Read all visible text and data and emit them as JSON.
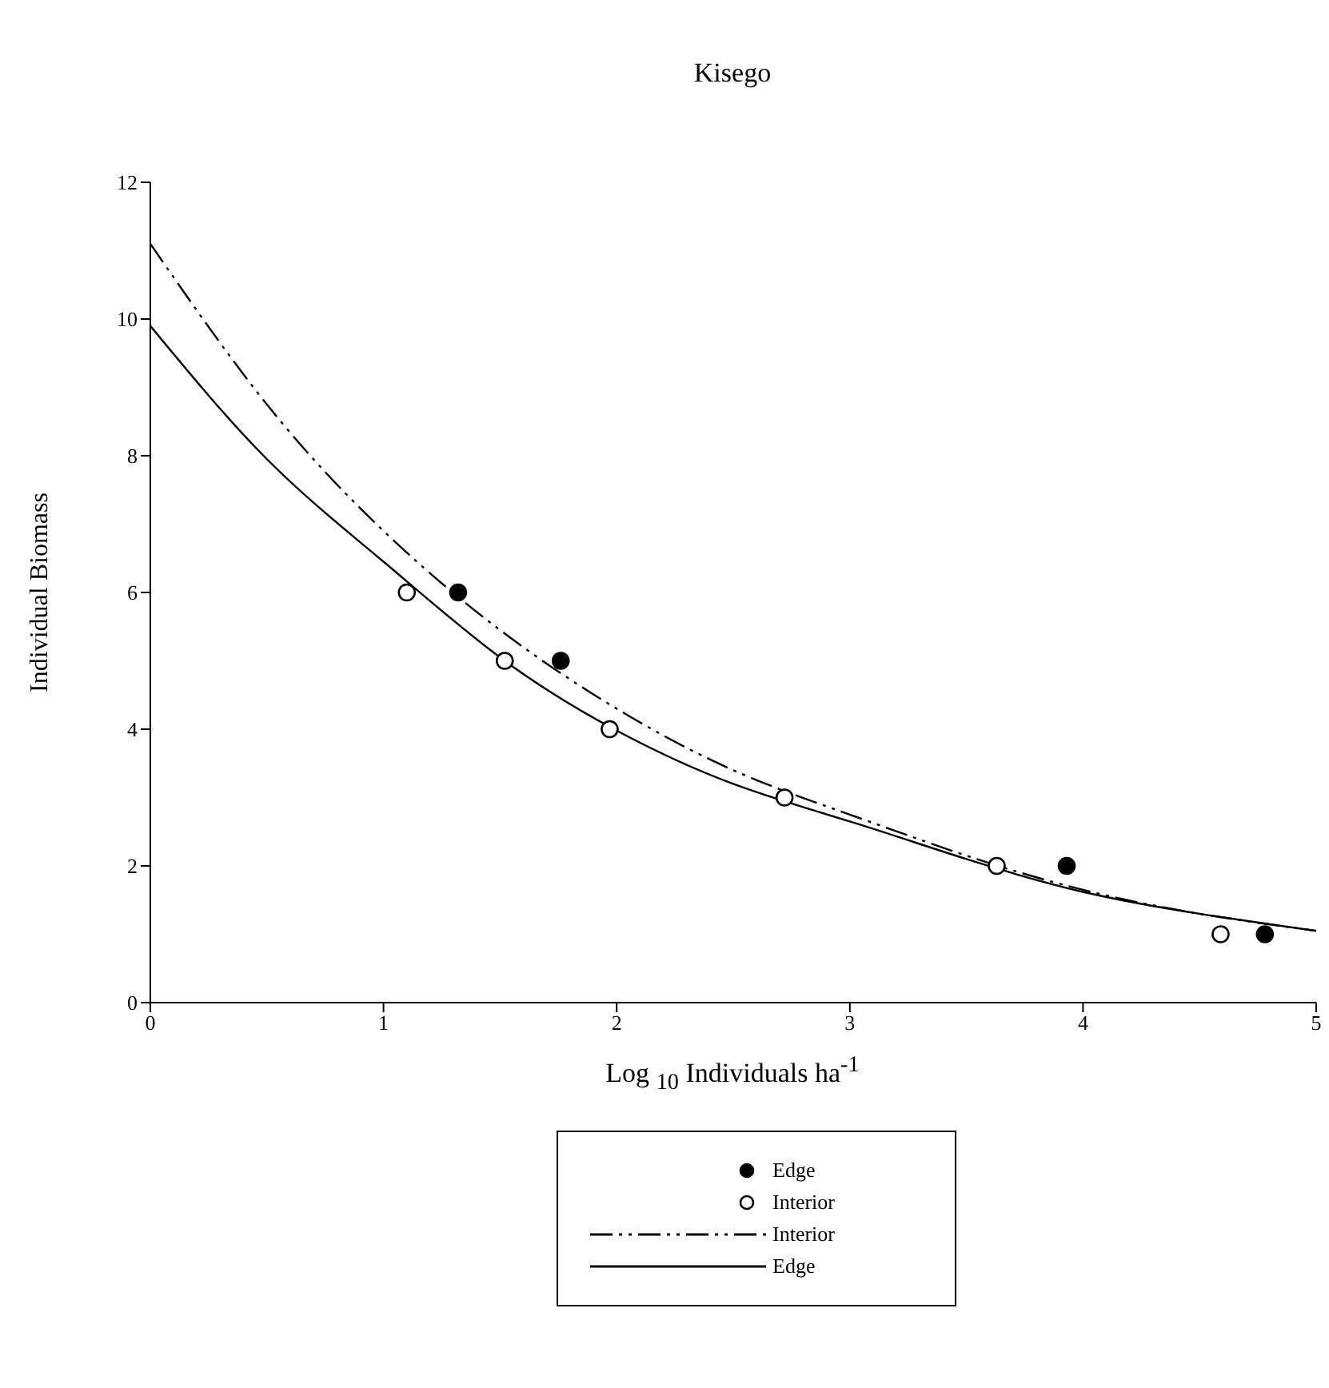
{
  "chart_data": {
    "type": "scatter",
    "title": "Kisego",
    "xlabel": "Log $_{10}$ Individuals ha$^{-1}$",
    "ylabel": "Individual Biomass",
    "xlim": [
      0,
      5
    ],
    "xticks": [
      0,
      1,
      2,
      3,
      4,
      5
    ],
    "ylim": [
      0,
      12
    ],
    "yticks": [
      0,
      2,
      4,
      6,
      8,
      10,
      12
    ],
    "grid": false,
    "legend": "bottom",
    "series": [
      {
        "name": "Edge",
        "color": "#000000",
        "marker": "circle",
        "x": [
          1.32,
          1.76,
          3.93,
          4.78
        ],
        "values": [
          6,
          5,
          2,
          1
        ]
      },
      {
        "name": "Interior",
        "color": "#ffffff",
        "marker": "circle",
        "x": [
          1.1,
          1.52,
          1.97,
          2.72,
          3.63,
          4.59
        ],
        "values": [
          6,
          5,
          4,
          3,
          2,
          1
        ]
      },
      {
        "name": "Interior",
        "type": "line",
        "color": "#000000",
        "line_style": "dashed",
        "x": [
          0,
          0.5,
          1,
          1.5,
          2,
          2.5,
          3,
          3.5,
          4,
          4.5,
          5
        ],
        "values": [
          11.1,
          8.75,
          6.9,
          5.45,
          4.3,
          3.4,
          2.75,
          2.15,
          1.65,
          1.3,
          1.05
        ]
      },
      {
        "name": "Edge",
        "type": "line",
        "color": "#000000",
        "line_style": "solid",
        "x": [
          0,
          0.5,
          1,
          1.5,
          2,
          2.5,
          3,
          3.5,
          4,
          4.5,
          5
        ],
        "values": [
          9.9,
          7.95,
          6.45,
          5.05,
          3.98,
          3.2,
          2.65,
          2.1,
          1.62,
          1.3,
          1.05
        ]
      }
    ]
  }
}
